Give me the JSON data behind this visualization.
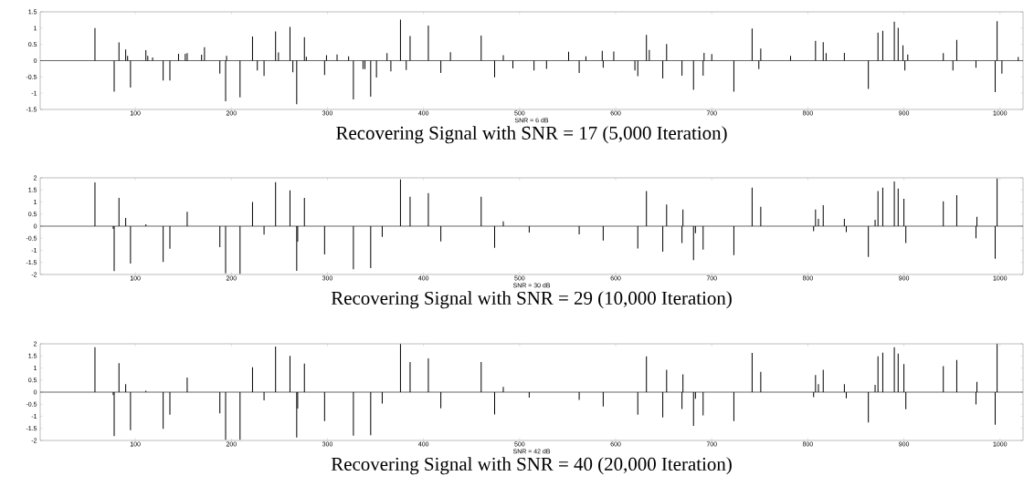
{
  "chart_data": [
    {
      "type": "bar",
      "title": "Recovering Signal with SNR = 17 (5,000 Iteration)",
      "xlabel": "SNR = 6 dB",
      "color": "#000000",
      "xlim": [
        1,
        1024
      ],
      "ylim": [
        -1.5,
        1.5
      ],
      "xticks": [
        100,
        200,
        300,
        400,
        500,
        600,
        700,
        800,
        900,
        1000
      ],
      "yticks": [
        -1.5,
        -1,
        -0.5,
        0,
        0.5,
        1,
        1.5
      ],
      "ref_lines": [
        {
          "axis": "y",
          "value": 0
        }
      ],
      "x": [
        58,
        78,
        83,
        90,
        92,
        95,
        111,
        113,
        118,
        129,
        136,
        145,
        152,
        154,
        169,
        172,
        188,
        194,
        195,
        209,
        222,
        227,
        234,
        246,
        249,
        261,
        264,
        268,
        276,
        278,
        297,
        299,
        310,
        322,
        327,
        337,
        339,
        345,
        351,
        362,
        366,
        376,
        382,
        386,
        405,
        418,
        428,
        460,
        474,
        483,
        493,
        515,
        528,
        551,
        562,
        569,
        586,
        587,
        598,
        620,
        623,
        632,
        635,
        649,
        653,
        669,
        681,
        691,
        692,
        700,
        723,
        742,
        749,
        751,
        782,
        808,
        816,
        819,
        838,
        863,
        873,
        878,
        890,
        894,
        899,
        901,
        904,
        941,
        951,
        955,
        975,
        995,
        997,
        1002,
        1019
      ],
      "values": [
        1.0,
        -0.95,
        0.56,
        0.34,
        0.15,
        -0.83,
        0.32,
        0.15,
        0.1,
        -0.61,
        -0.61,
        0.21,
        0.21,
        0.23,
        0.18,
        0.41,
        -0.4,
        -1.25,
        0.15,
        -1.13,
        0.74,
        -0.3,
        -0.47,
        0.9,
        0.25,
        1.04,
        -0.36,
        -1.34,
        0.72,
        0.12,
        -0.44,
        0.17,
        0.19,
        0.13,
        -1.19,
        -0.26,
        -0.26,
        -1.11,
        -0.52,
        0.23,
        -0.33,
        1.26,
        -0.29,
        0.76,
        1.08,
        -0.38,
        0.26,
        0.77,
        -0.51,
        0.17,
        -0.24,
        -0.3,
        -0.25,
        0.27,
        -0.38,
        0.13,
        0.3,
        -0.22,
        0.28,
        -0.3,
        -0.48,
        0.79,
        0.33,
        -0.55,
        0.51,
        -0.46,
        -0.9,
        -0.46,
        0.24,
        0.2,
        -0.95,
        0.99,
        -0.26,
        0.37,
        0.15,
        0.61,
        0.57,
        0.23,
        0.24,
        -0.87,
        0.86,
        0.92,
        1.2,
        1.01,
        0.47,
        -0.3,
        0.19,
        0.23,
        -0.3,
        0.64,
        -0.22,
        -0.97,
        1.21,
        -0.4,
        0.11
      ]
    },
    {
      "type": "bar",
      "title": "Recovering Signal with SNR = 29 (10,000 Iteration)",
      "xlabel": "SNR = 30 dB",
      "color": "#000000",
      "xlim": [
        1,
        1024
      ],
      "ylim": [
        -2,
        2
      ],
      "xticks": [
        100,
        200,
        300,
        400,
        500,
        600,
        700,
        800,
        900,
        1000
      ],
      "yticks": [
        -2,
        -1.5,
        -1,
        -0.5,
        0,
        0.5,
        1,
        1.5,
        2
      ],
      "ref_lines": [
        {
          "axis": "y",
          "value": 0
        }
      ],
      "x": [
        58,
        77,
        78,
        83,
        90,
        95,
        111,
        129,
        136,
        154,
        188,
        194,
        209,
        222,
        234,
        246,
        261,
        268,
        269,
        276,
        297,
        327,
        345,
        357,
        376,
        386,
        405,
        418,
        460,
        474,
        483,
        510,
        562,
        587,
        623,
        632,
        649,
        653,
        669,
        670,
        681,
        683,
        691,
        723,
        742,
        751,
        806,
        808,
        811,
        816,
        838,
        840,
        863,
        870,
        873,
        878,
        890,
        894,
        900,
        902,
        941,
        955,
        975,
        976,
        995,
        997
      ],
      "values": [
        1.81,
        -0.11,
        -1.86,
        1.17,
        0.34,
        -1.55,
        0.08,
        -1.48,
        -0.93,
        0.59,
        -0.87,
        -1.95,
        -1.97,
        1.0,
        -0.35,
        1.82,
        1.48,
        -1.85,
        -0.64,
        1.17,
        -1.17,
        -1.78,
        -1.74,
        -0.44,
        1.93,
        1.22,
        1.37,
        -0.63,
        1.22,
        -0.9,
        0.2,
        -0.26,
        -0.34,
        -0.59,
        -0.92,
        1.45,
        -1.06,
        0.9,
        -0.7,
        0.69,
        -1.41,
        -0.29,
        -0.97,
        -1.2,
        1.59,
        0.8,
        -0.21,
        0.69,
        0.3,
        0.87,
        0.3,
        -0.25,
        -1.27,
        0.26,
        1.45,
        1.59,
        1.85,
        1.56,
        1.13,
        -0.7,
        1.03,
        1.28,
        -0.5,
        0.39,
        -1.35,
        1.97
      ]
    },
    {
      "type": "bar",
      "title": "Recovering Signal with SNR = 40 (20,000 Iteration)",
      "xlabel": "SNR = 42 dB",
      "color": "#000000",
      "xlim": [
        1,
        1024
      ],
      "ylim": [
        -2,
        2
      ],
      "xticks": [
        100,
        200,
        300,
        400,
        500,
        600,
        700,
        800,
        900,
        1000
      ],
      "yticks": [
        -2,
        -1.5,
        -1,
        -0.5,
        0,
        0.5,
        1,
        1.5,
        2
      ],
      "ref_lines": [
        {
          "axis": "y",
          "value": 0
        }
      ],
      "x": [
        58,
        77,
        78,
        83,
        90,
        95,
        111,
        129,
        136,
        154,
        188,
        194,
        209,
        222,
        234,
        246,
        261,
        268,
        269,
        276,
        297,
        327,
        345,
        357,
        376,
        386,
        405,
        418,
        460,
        474,
        483,
        510,
        562,
        587,
        623,
        632,
        649,
        653,
        669,
        670,
        681,
        683,
        691,
        723,
        742,
        751,
        806,
        808,
        811,
        816,
        838,
        840,
        863,
        870,
        873,
        878,
        890,
        894,
        900,
        902,
        941,
        955,
        975,
        976,
        995,
        997
      ],
      "values": [
        1.86,
        -0.12,
        -1.82,
        1.2,
        0.33,
        -1.58,
        0.06,
        -1.52,
        -0.93,
        0.6,
        -0.88,
        -1.97,
        -1.97,
        1.03,
        -0.34,
        1.89,
        1.5,
        -1.88,
        -0.68,
        1.18,
        -1.2,
        -1.8,
        -1.78,
        -0.47,
        1.99,
        1.25,
        1.4,
        -0.67,
        1.25,
        -0.92,
        0.22,
        -0.23,
        -0.32,
        -0.59,
        -0.93,
        1.48,
        -1.05,
        0.92,
        -0.7,
        0.74,
        -1.4,
        -0.27,
        -0.96,
        -1.2,
        1.62,
        0.84,
        -0.21,
        0.71,
        0.33,
        0.92,
        0.33,
        -0.25,
        -1.25,
        0.3,
        1.48,
        1.63,
        1.86,
        1.59,
        1.16,
        -0.71,
        1.08,
        1.33,
        -0.51,
        0.42,
        -1.35,
        1.99
      ]
    }
  ]
}
